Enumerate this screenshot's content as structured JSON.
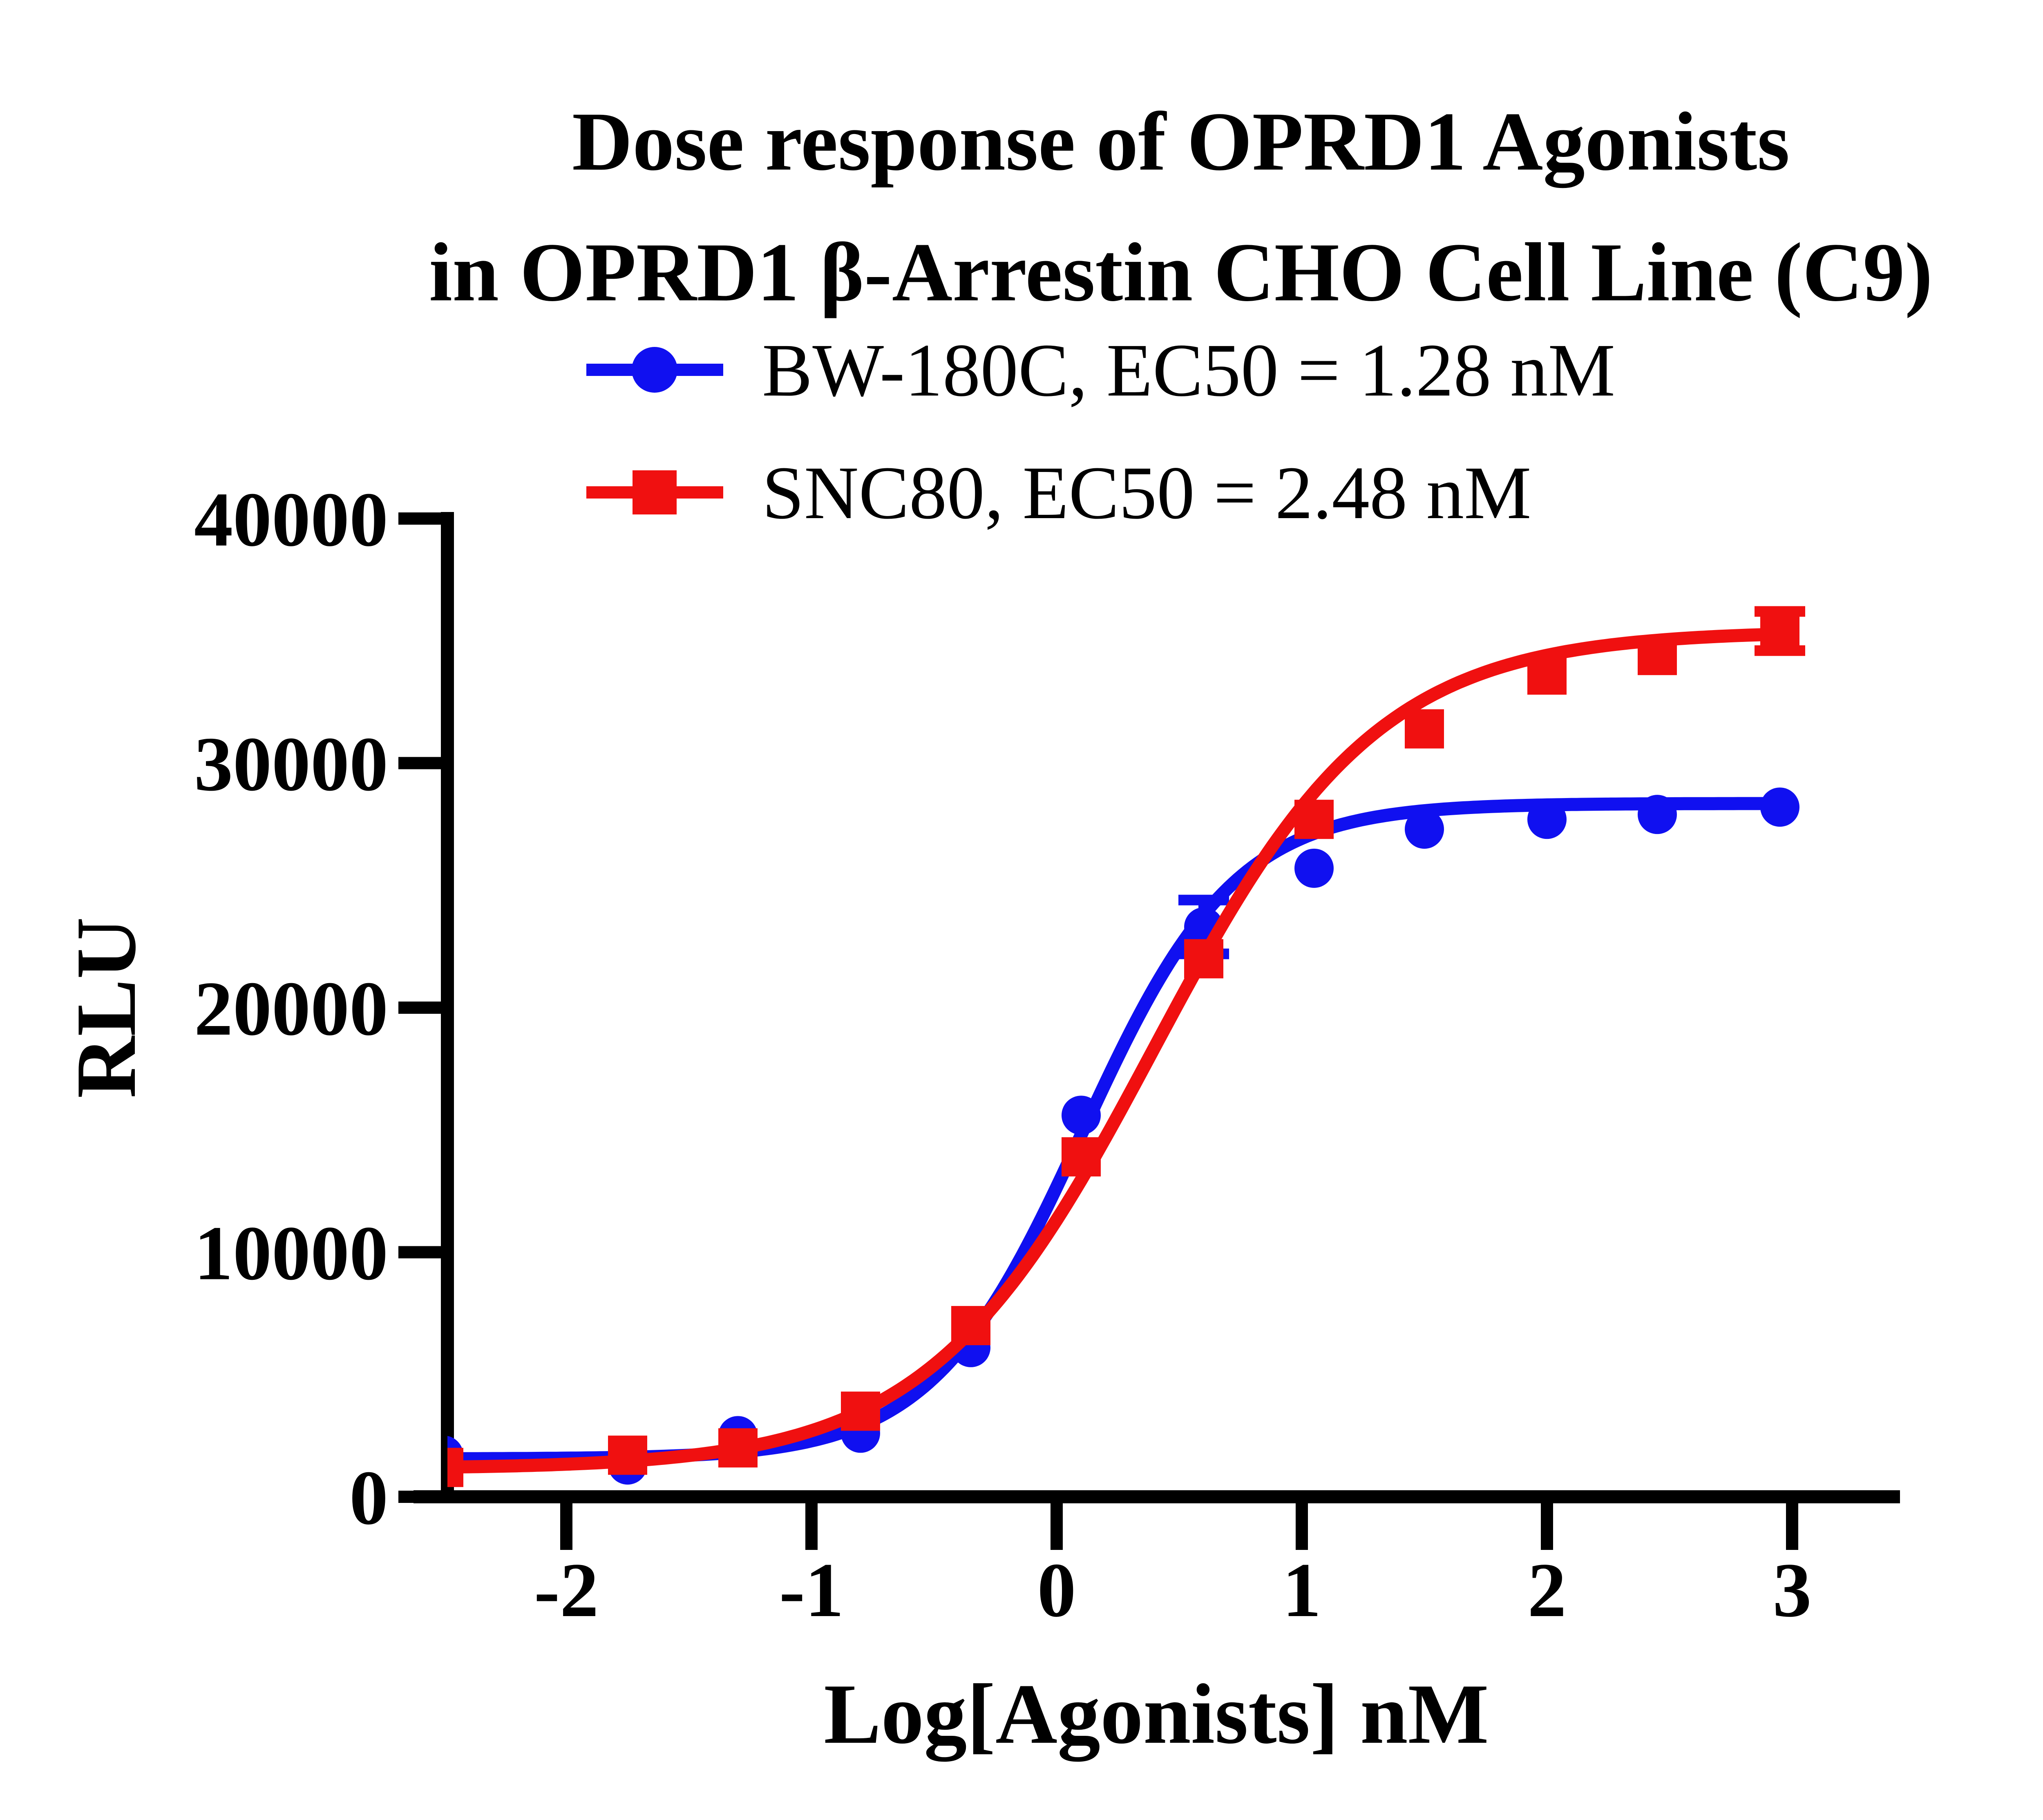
{
  "title": {
    "line1": "Dose response of OPRD1 Agonists",
    "line2": "in OPRD1 β-Arrestin CHO Cell Line (C9)"
  },
  "legend": [
    {
      "label": "BW-180C, EC50 = 1.28 nM",
      "color": "#1010f0",
      "marker": "circle"
    },
    {
      "label": "SNC80, EC50 = 2.48 nM",
      "color": "#f01010",
      "marker": "square"
    }
  ],
  "y_axis": {
    "label": "RLU",
    "ticks": [
      "0",
      "10000",
      "20000",
      "30000",
      "40000"
    ]
  },
  "x_axis": {
    "label": "Log[Agonists] nM",
    "ticks": [
      "-2",
      "-1",
      "0",
      "1",
      "2",
      "3"
    ]
  },
  "chart_data": {
    "type": "scatter",
    "title": "Dose response of OPRD1 Agonists in OPRD1 β-Arrestin CHO Cell Line (C9)",
    "xlabel": "Log[Agonists] nM",
    "ylabel": "RLU",
    "xlim": [
      -2.5,
      3.44
    ],
    "ylim": [
      0,
      40000
    ],
    "x_ticks": [
      -2,
      -1,
      0,
      1,
      2,
      3
    ],
    "y_ticks": [
      0,
      10000,
      20000,
      30000,
      40000
    ],
    "grid": false,
    "legend_position": "top",
    "series": [
      {
        "name": "BW-180C",
        "ec50_label": "EC50 = 1.28 nM",
        "color": "#1010f0",
        "marker": "circle",
        "x": [
          -2.5,
          -1.75,
          -1.3,
          -0.8,
          -0.35,
          0.1,
          0.6,
          1.05,
          1.5,
          2.0,
          2.45,
          2.95
        ],
        "y": [
          1700,
          1300,
          2500,
          2600,
          6100,
          15600,
          23300,
          25700,
          27300,
          27700,
          27900,
          28200
        ],
        "yerr": [
          0,
          0,
          0,
          0,
          0,
          0,
          1100,
          0,
          0,
          0,
          0,
          0
        ],
        "fit": {
          "bottom": 1550,
          "top": 28350,
          "logEC50": 0.107,
          "hill": 1.4
        }
      },
      {
        "name": "SNC80",
        "ec50_label": "EC50 = 2.48 nM",
        "color": "#f01010",
        "marker": "square",
        "x": [
          -2.5,
          -1.75,
          -1.3,
          -0.8,
          -0.35,
          0.1,
          0.6,
          1.05,
          1.5,
          2.0,
          2.45,
          2.95
        ],
        "y": [
          1200,
          1700,
          2000,
          3500,
          7000,
          13900,
          22000,
          27700,
          31400,
          33600,
          34400,
          35400
        ],
        "yerr": [
          0,
          0,
          0,
          0,
          0,
          0,
          0,
          0,
          0,
          0,
          0,
          800
        ],
        "fit": {
          "bottom": 1150,
          "top": 35400,
          "logEC50": 0.394,
          "hill": 0.95
        }
      }
    ]
  }
}
